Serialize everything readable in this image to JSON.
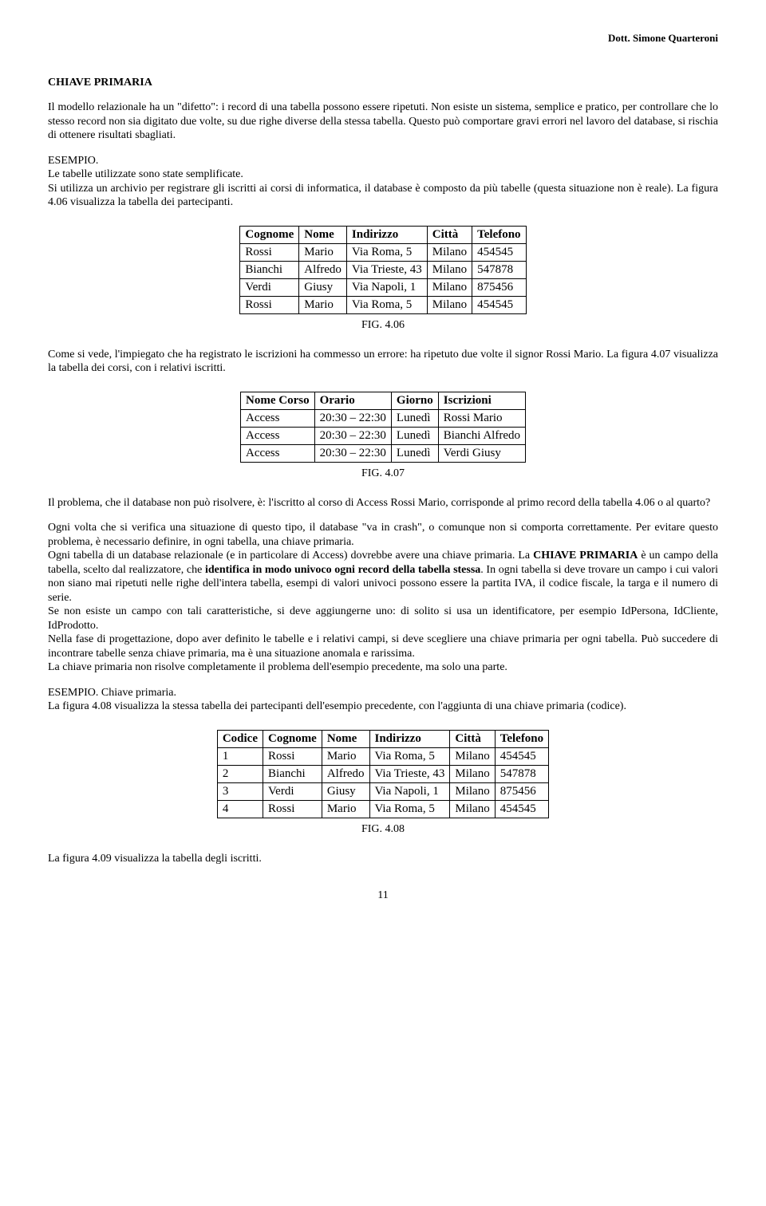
{
  "header": {
    "author": "Dott. Simone Quarteroni"
  },
  "section": {
    "title": "CHIAVE PRIMARIA"
  },
  "p1": "Il modello relazionale ha un \"difetto\": i record di una tabella possono essere ripetuti. Non esiste un sistema, semplice e pratico, per controllare che lo stesso record non sia digitato due volte, su due righe diverse della stessa tabella. Questo può comportare gravi errori nel lavoro del database, si rischia di ottenere risultati sbagliati.",
  "p2a": "ESEMPIO.",
  "p2b": "Le tabelle utilizzate sono state semplificate.",
  "p2c": "Si utilizza un archivio per registrare gli iscritti ai corsi di informatica, il database è composto da più tabelle (questa situazione non è reale). La figura 4.06 visualizza la tabella dei partecipanti.",
  "table1": {
    "headers": [
      "Cognome",
      "Nome",
      "Indirizzo",
      "Città",
      "Telefono"
    ],
    "rows": [
      [
        "Rossi",
        "Mario",
        "Via Roma, 5",
        "Milano",
        "454545"
      ],
      [
        "Bianchi",
        "Alfredo",
        "Via Trieste, 43",
        "Milano",
        "547878"
      ],
      [
        "Verdi",
        "Giusy",
        "Via Napoli, 1",
        "Milano",
        "875456"
      ],
      [
        "Rossi",
        "Mario",
        "Via Roma, 5",
        "Milano",
        "454545"
      ]
    ],
    "caption": "FIG. 4.06"
  },
  "p3": "Come si vede, l'impiegato che ha registrato le iscrizioni ha commesso un errore: ha ripetuto due volte il signor Rossi Mario. La figura 4.07 visualizza la tabella dei corsi, con i relativi iscritti.",
  "table2": {
    "headers": [
      "Nome Corso",
      "Orario",
      "Giorno",
      "Iscrizioni"
    ],
    "rows": [
      [
        "Access",
        "20:30 – 22:30",
        "Lunedì",
        "Rossi Mario"
      ],
      [
        "Access",
        "20:30 – 22:30",
        "Lunedì",
        "Bianchi Alfredo"
      ],
      [
        "Access",
        "20:30 – 22:30",
        "Lunedì",
        "Verdi Giusy"
      ]
    ],
    "caption": "FIG. 4.07"
  },
  "p4": "Il problema, che il database non può risolvere, è: l'iscritto al corso di Access Rossi Mario, corrisponde al primo record della tabella 4.06 o al quarto?",
  "p5": "Ogni volta che si verifica una situazione di questo tipo, il database \"va in crash\", o comunque non si comporta correttamente. Per evitare questo problema, è necessario definire, in ogni tabella, una chiave primaria.",
  "p6a": "Ogni tabella di un database relazionale (e in particolare di Access) dovrebbe avere una chiave primaria. La ",
  "p6b": "CHIAVE PRIMARIA",
  "p6c": " è un campo della tabella, scelto dal realizzatore, che ",
  "p6d": "identifica in modo univoco ogni record della tabella stessa",
  "p6e": ". In ogni tabella si deve trovare un campo i cui valori non siano mai ripetuti nelle righe dell'intera tabella, esempi di valori univoci possono essere la partita IVA, il codice fiscale, la targa e il numero di serie.",
  "p7": "Se non esiste un campo con tali caratteristiche, si deve aggiungerne uno: di solito si usa un identificatore, per esempio IdPersona, IdCliente, IdProdotto.",
  "p8": "Nella fase di progettazione, dopo aver definito le tabelle e i relativi campi, si deve scegliere una chiave primaria per ogni tabella. Può succedere di incontrare tabelle senza chiave primaria, ma è una situazione anomala e rarissima.",
  "p9": "La chiave primaria non risolve completamente il problema dell'esempio precedente, ma solo una parte.",
  "p10a": "ESEMPIO. Chiave primaria.",
  "p10b": "La figura 4.08 visualizza la stessa tabella dei partecipanti dell'esempio precedente, con l'aggiunta di una chiave primaria (codice).",
  "table3": {
    "headers": [
      "Codice",
      "Cognome",
      "Nome",
      "Indirizzo",
      "Città",
      "Telefono"
    ],
    "rows": [
      [
        "1",
        "Rossi",
        "Mario",
        "Via Roma, 5",
        "Milano",
        "454545"
      ],
      [
        "2",
        "Bianchi",
        "Alfredo",
        "Via Trieste, 43",
        "Milano",
        "547878"
      ],
      [
        "3",
        "Verdi",
        "Giusy",
        "Via Napoli, 1",
        "Milano",
        "875456"
      ],
      [
        "4",
        "Rossi",
        "Mario",
        "Via Roma, 5",
        "Milano",
        "454545"
      ]
    ],
    "caption": "FIG. 4.08"
  },
  "p11": "La figura 4.09 visualizza la tabella degli iscritti.",
  "pageNum": "11"
}
